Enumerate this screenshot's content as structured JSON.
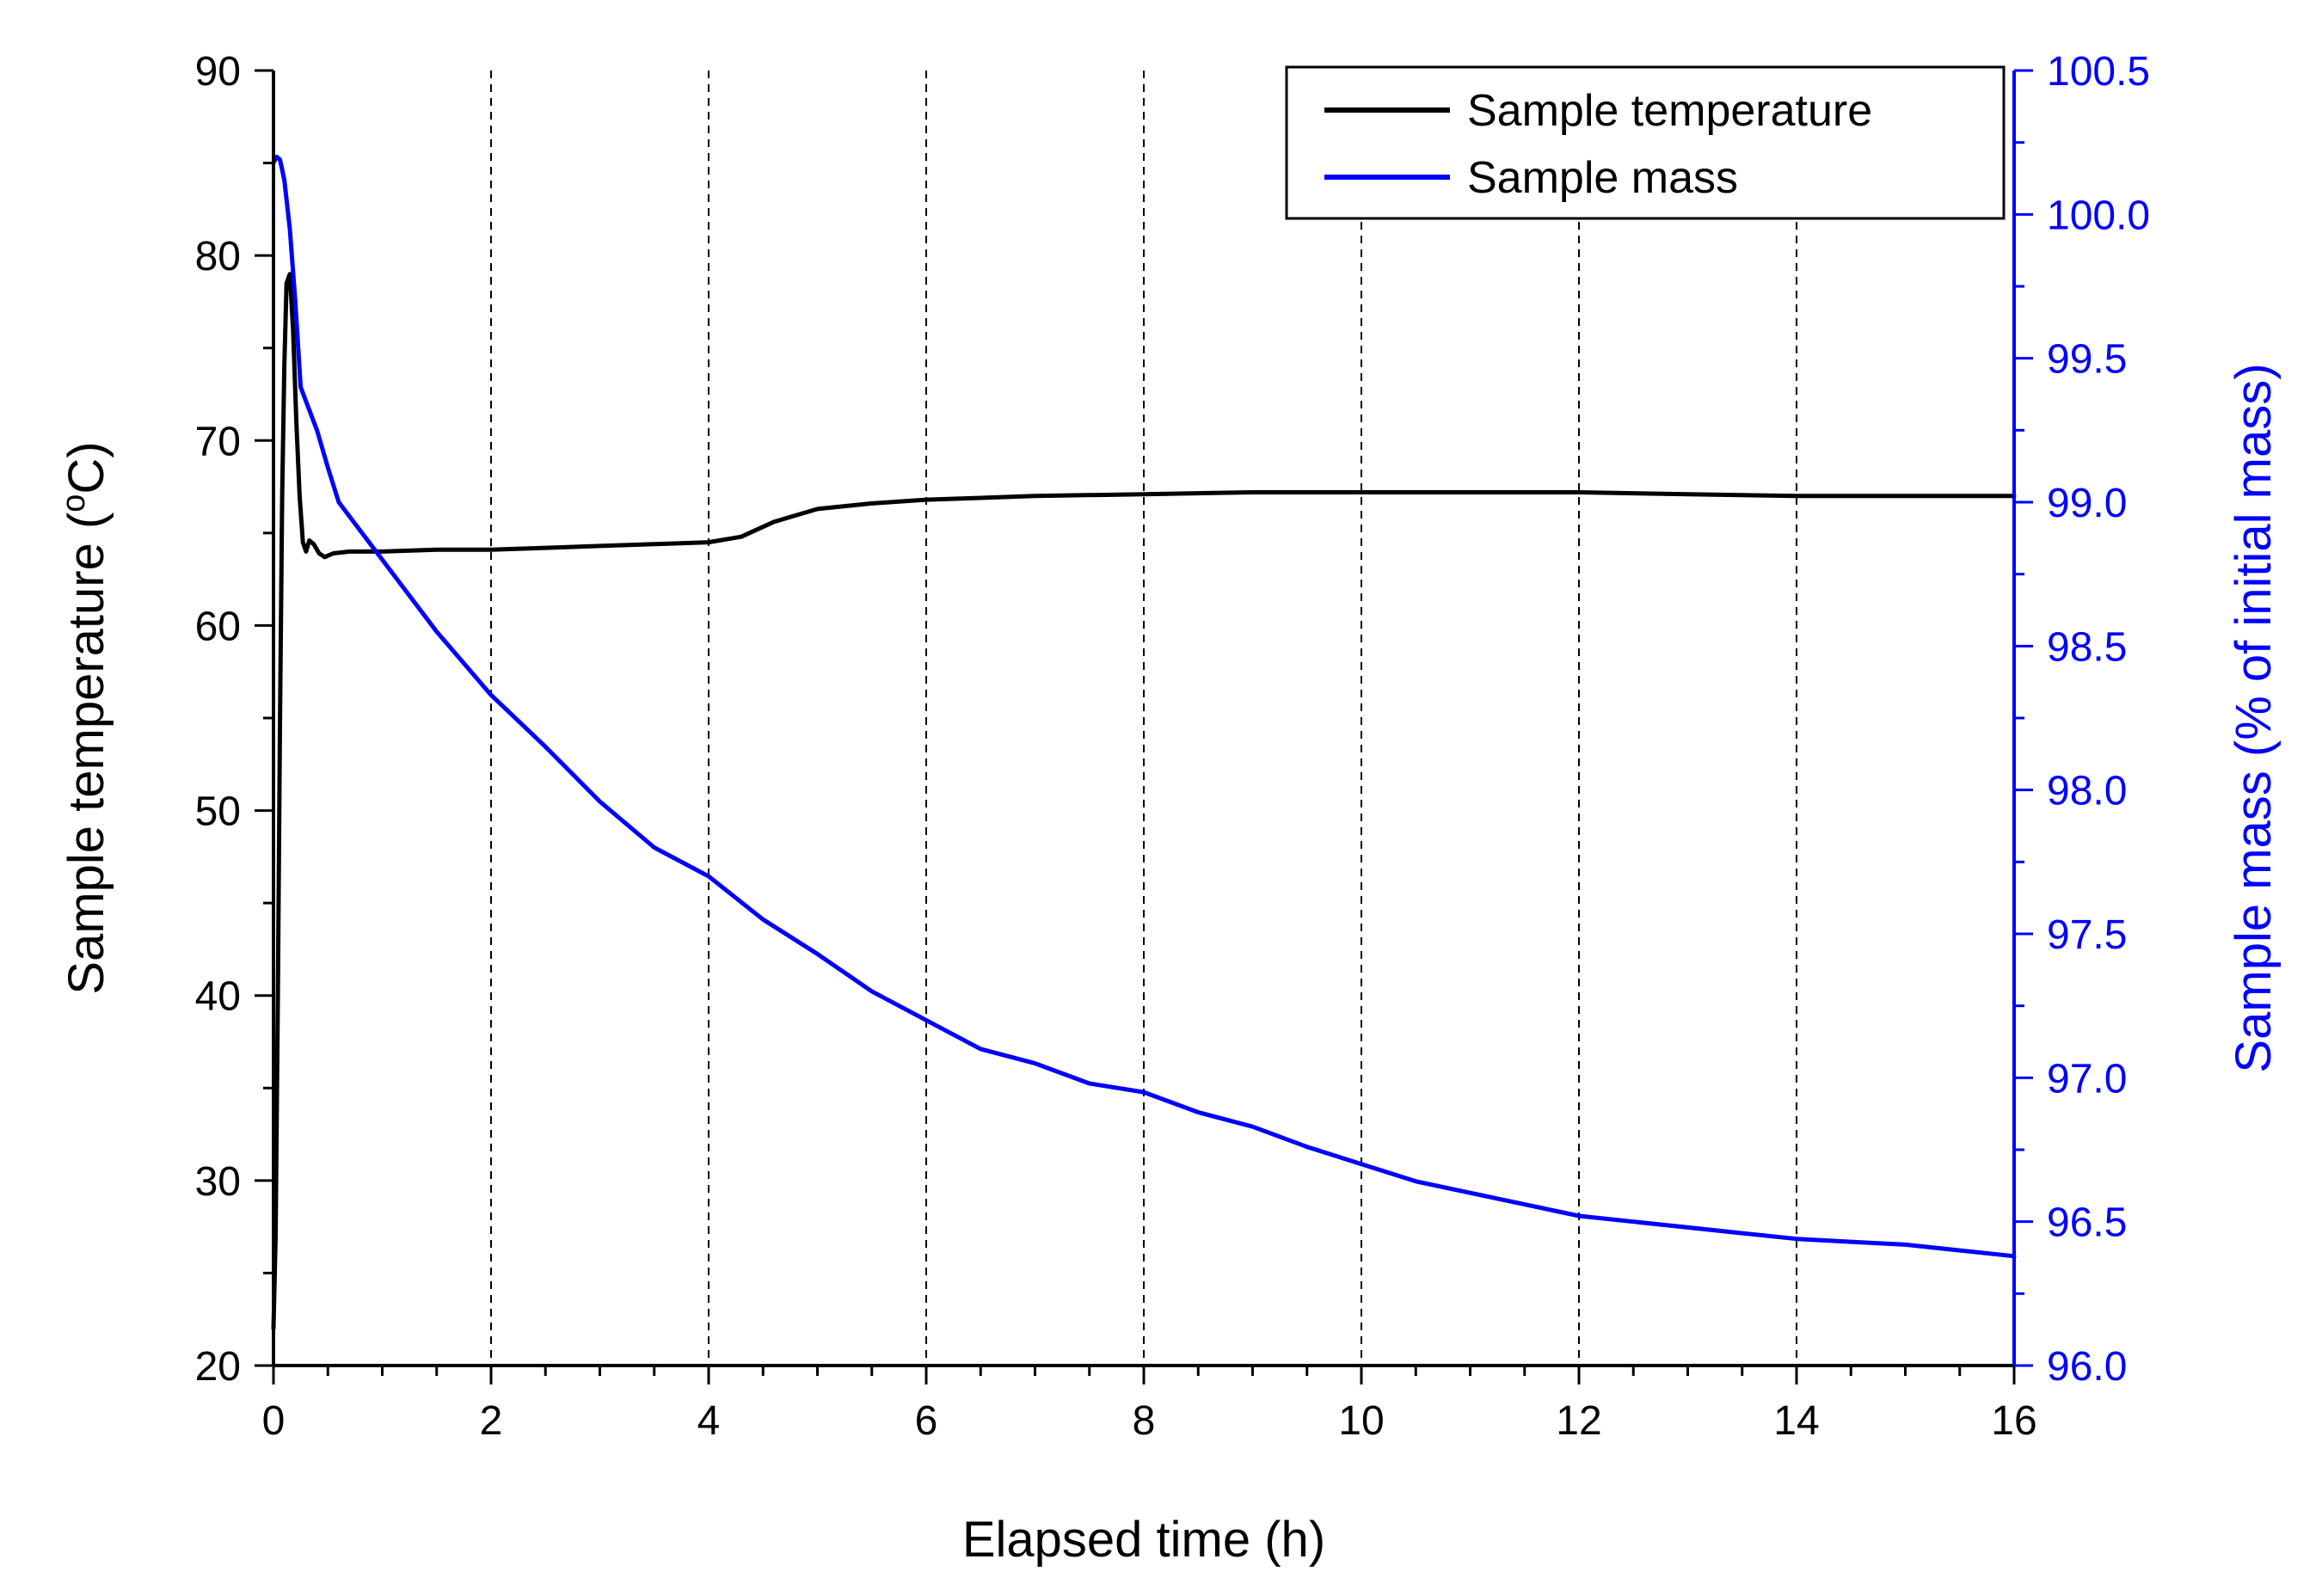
{
  "chart_data": {
    "type": "line",
    "title": "",
    "xlabel": "Elapsed time (h)",
    "ylabel_left": {
      "prefix": "Sample temperature (",
      "sup": "o",
      "suffix": "C)"
    },
    "ylabel_right": "Sample mass (% of initial mass)",
    "xlim": [
      0,
      16
    ],
    "ylim_left": [
      20,
      90
    ],
    "ylim_right": [
      96.0,
      100.5
    ],
    "x_ticks": [
      "0",
      "2",
      "4",
      "6",
      "8",
      "10",
      "12",
      "14",
      "16"
    ],
    "y_left_ticks": [
      "20",
      "30",
      "40",
      "50",
      "60",
      "70",
      "80",
      "90"
    ],
    "y_right_ticks": [
      "96.0",
      "96.5",
      "97.0",
      "97.5",
      "98.0",
      "98.5",
      "99.0",
      "99.5",
      "100.0",
      "100.5"
    ],
    "grid": "vertical dashed lines at x = 2, 4, 6, 8, 10, 12, 14",
    "legend_position": "top-right",
    "series": [
      {
        "name": "Sample temperature",
        "axis": "left",
        "color": "#000000",
        "x": [
          0,
          0.02,
          0.04,
          0.06,
          0.08,
          0.1,
          0.12,
          0.15,
          0.18,
          0.21,
          0.24,
          0.27,
          0.3,
          0.33,
          0.37,
          0.42,
          0.47,
          0.55,
          0.7,
          1.0,
          1.5,
          2.0,
          2.5,
          3.0,
          3.5,
          4.0,
          4.3,
          4.6,
          5.0,
          5.5,
          6.0,
          7.0,
          8.0,
          9.0,
          10.0,
          11.0,
          12.0,
          13.0,
          14.0,
          15.0,
          16.0
        ],
        "y": [
          22,
          27,
          40,
          55,
          67,
          74,
          78.5,
          79,
          76,
          71,
          67,
          64.5,
          64,
          64.6,
          64.4,
          63.9,
          63.7,
          63.9,
          64.0,
          64.0,
          64.1,
          64.1,
          64.2,
          64.3,
          64.4,
          64.5,
          64.8,
          65.6,
          66.3,
          66.6,
          66.8,
          67.0,
          67.1,
          67.2,
          67.2,
          67.2,
          67.2,
          67.1,
          67.0,
          67.0,
          67.0
        ]
      },
      {
        "name": "Sample mass",
        "axis": "right",
        "color": "#0000ff",
        "x": [
          0,
          0.03,
          0.06,
          0.1,
          0.15,
          0.2,
          0.25,
          0.3,
          0.4,
          0.5,
          0.6,
          0.8,
          1.0,
          1.2,
          1.5,
          2.0,
          2.5,
          3.0,
          3.5,
          4.0,
          4.5,
          5.0,
          5.5,
          6.0,
          6.5,
          7.0,
          7.5,
          8.0,
          8.5,
          9.0,
          9.5,
          10.0,
          10.5,
          11.0,
          11.5,
          12.0,
          12.5,
          13.0,
          13.5,
          14.0,
          14.5,
          15.0,
          15.5,
          16.0
        ],
        "y": [
          100.18,
          100.2,
          100.19,
          100.12,
          99.95,
          99.7,
          99.4,
          99.35,
          99.25,
          99.12,
          99.0,
          98.9,
          98.8,
          98.7,
          98.55,
          98.33,
          98.15,
          97.96,
          97.8,
          97.7,
          97.55,
          97.43,
          97.3,
          97.2,
          97.1,
          97.05,
          96.98,
          96.95,
          96.88,
          96.83,
          96.76,
          96.7,
          96.64,
          96.6,
          96.56,
          96.52,
          96.5,
          96.48,
          96.46,
          96.44,
          96.43,
          96.42,
          96.4,
          96.38
        ]
      }
    ]
  }
}
